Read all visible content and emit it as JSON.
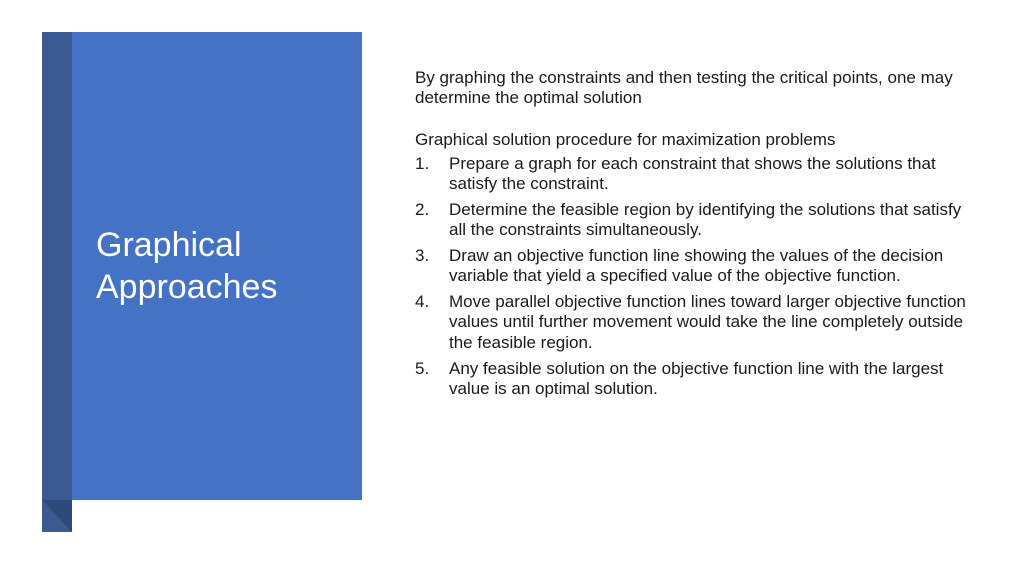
{
  "panel": {
    "bg_color": "#4472c4",
    "title": "Graphical Approaches"
  },
  "content": {
    "intro": "By graphing the constraints and then testing the critical points, one may determine the optimal solution",
    "subheading": "Graphical solution procedure for maximization problems",
    "steps": [
      "Prepare a graph for each constraint that shows the solutions that satisfy the constraint.",
      "Determine the feasible region by identifying the solutions that satisfy all the constraints simultaneously.",
      "Draw an objective function line showing the values of the decision variable that yield a specified value of the objective function.",
      "Move parallel objective function lines toward larger objective function values until further movement would take the line completely outside the feasible region.",
      "Any feasible solution on the objective function line with the largest value is an optimal solution."
    ]
  }
}
